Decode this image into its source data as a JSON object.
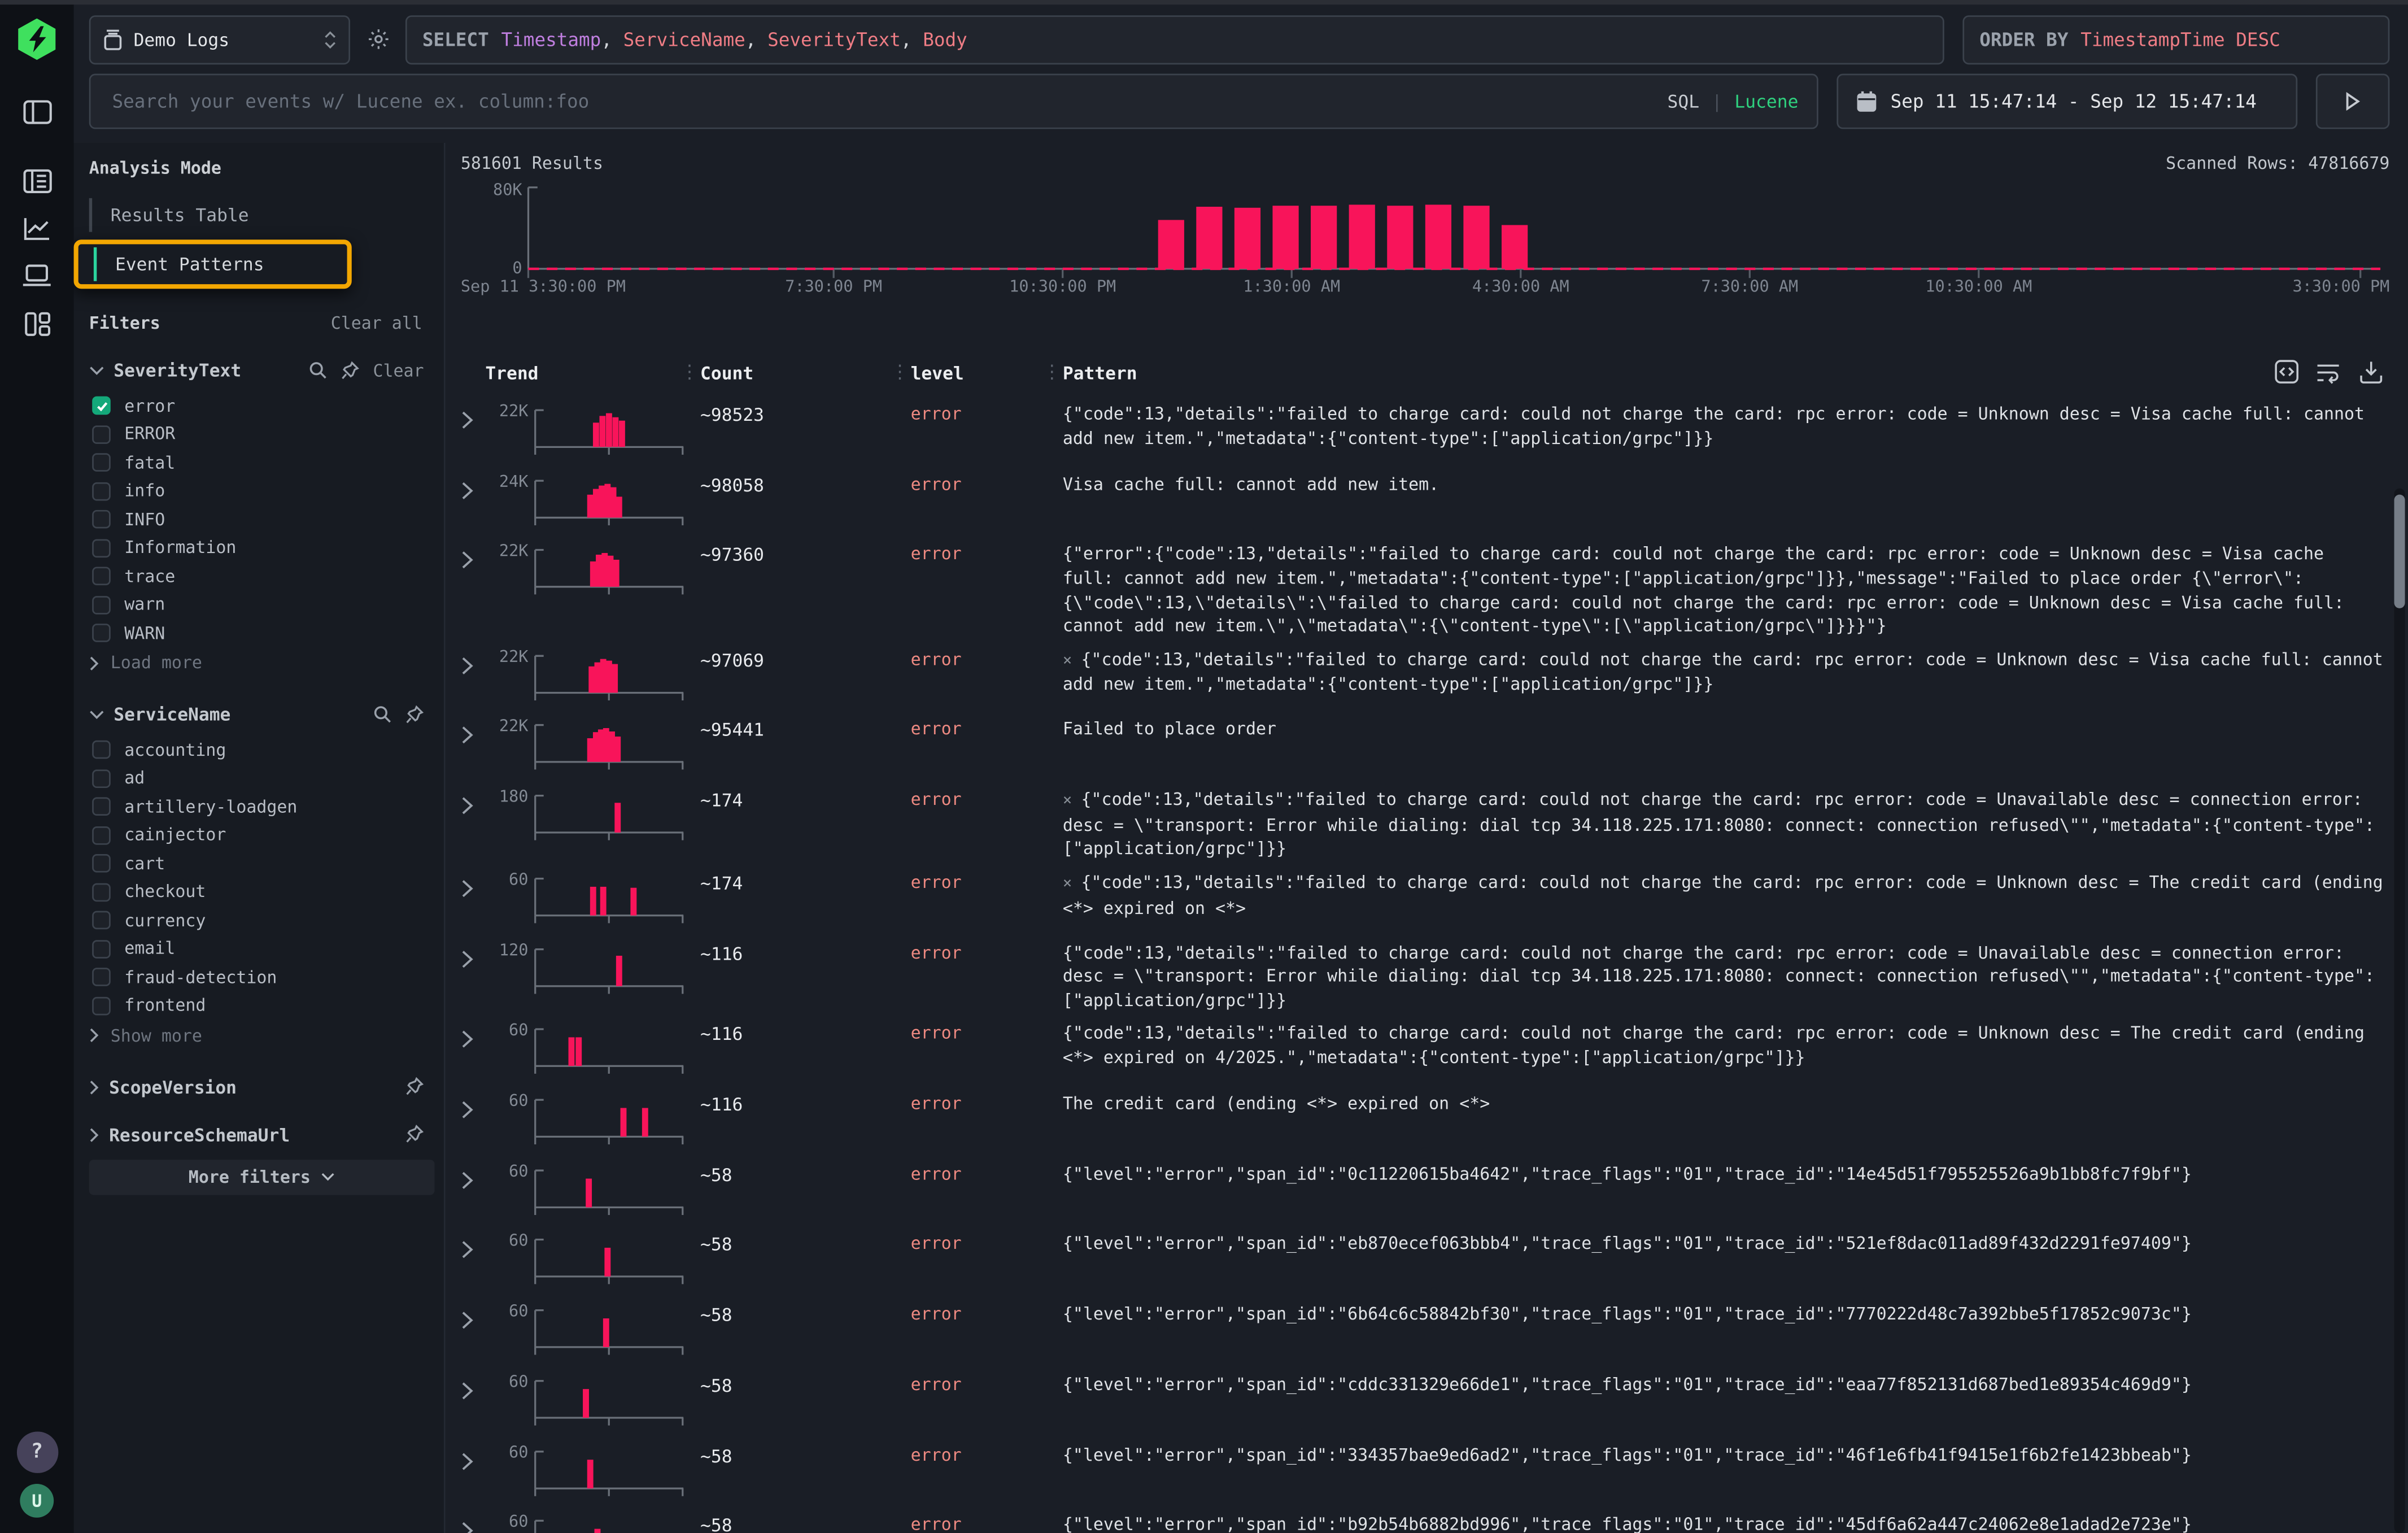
{
  "colors": {
    "accent_pink": "#f8145a",
    "salmon": "#ef7d85",
    "purple": "#c07fe0",
    "green": "#2fd27f",
    "check_green": "#14a87a",
    "annotation_yellow": "#f3a702"
  },
  "icon_rail": {
    "help_label": "?",
    "avatar_label": "U"
  },
  "topbar": {
    "source_select": {
      "label": "Demo Logs"
    },
    "select_query": {
      "keyword": "SELECT",
      "columns": [
        {
          "text": "Timestamp",
          "color": "#c07fe0"
        },
        {
          "text": "ServiceName",
          "color": "#ef7d85"
        },
        {
          "text": "SeverityText",
          "color": "#ef7d85"
        },
        {
          "text": "Body",
          "color": "#ef7d85"
        }
      ]
    },
    "order_by": {
      "keyword": "ORDER BY",
      "value": "TimestampTime DESC"
    },
    "search": {
      "placeholder": "Search your events w/ Lucene ex. column:foo",
      "sql_label": "SQL",
      "divider": "|",
      "lucene_label": "Lucene"
    },
    "time_range": "Sep 11 15:47:14 - Sep 12 15:47:14"
  },
  "filters_panel": {
    "analysis_mode": {
      "title": "Analysis Mode",
      "options": [
        {
          "label": "Results Table",
          "active": false,
          "annotated": false
        },
        {
          "label": "Event Patterns",
          "active": true,
          "annotated": true
        }
      ]
    },
    "filters_title": "Filters",
    "clear_all": "Clear all",
    "clear": "Clear",
    "groups": [
      {
        "name": "SeverityText",
        "expanded": true,
        "has_search": true,
        "has_pin": true,
        "has_clear": true,
        "options": [
          {
            "label": "error",
            "checked": true
          },
          {
            "label": "ERROR",
            "checked": false
          },
          {
            "label": "fatal",
            "checked": false
          },
          {
            "label": "info",
            "checked": false
          },
          {
            "label": "INFO",
            "checked": false
          },
          {
            "label": "Information",
            "checked": false
          },
          {
            "label": "trace",
            "checked": false
          },
          {
            "label": "warn",
            "checked": false
          },
          {
            "label": "WARN",
            "checked": false
          }
        ],
        "more_label": "Load more"
      },
      {
        "name": "ServiceName",
        "expanded": true,
        "has_search": true,
        "has_pin": true,
        "has_clear": false,
        "options": [
          {
            "label": "accounting",
            "checked": false
          },
          {
            "label": "ad",
            "checked": false
          },
          {
            "label": "artillery-loadgen",
            "checked": false
          },
          {
            "label": "cainjector",
            "checked": false
          },
          {
            "label": "cart",
            "checked": false
          },
          {
            "label": "checkout",
            "checked": false
          },
          {
            "label": "currency",
            "checked": false
          },
          {
            "label": "email",
            "checked": false
          },
          {
            "label": "fraud-detection",
            "checked": false
          },
          {
            "label": "frontend",
            "checked": false
          }
        ],
        "more_label": "Show more"
      },
      {
        "name": "ScopeVersion",
        "expanded": false,
        "has_search": false,
        "has_pin": true,
        "has_clear": false,
        "options": [],
        "more_label": ""
      },
      {
        "name": "ResourceSchemaUrl",
        "expanded": false,
        "has_search": false,
        "has_pin": true,
        "has_clear": false,
        "options": [],
        "more_label": ""
      }
    ],
    "more_filters_label": "More filters"
  },
  "results": {
    "count_label": "581601 Results",
    "scanned_label": "Scanned Rows: 47816679"
  },
  "chart_data": {
    "type": "bar",
    "title": "581601 Results",
    "ylim": [
      0,
      80000
    ],
    "y_tick_labels": [
      "0",
      "80K"
    ],
    "x_ticks": [
      {
        "label": "Sep 11 3:30:00 PM",
        "hour": 0
      },
      {
        "label": "7:30:00 PM",
        "hour": 4
      },
      {
        "label": "10:30:00 PM",
        "hour": 7
      },
      {
        "label": "1:30:00 AM",
        "hour": 10
      },
      {
        "label": "4:30:00 AM",
        "hour": 13
      },
      {
        "label": "7:30:00 AM",
        "hour": 16
      },
      {
        "label": "10:30:00 AM",
        "hour": 19
      },
      {
        "label": "3:30:00 PM",
        "hour": 24
      }
    ],
    "bar_start_hour": 8.25,
    "bar_slot_hours": 0.5,
    "values": [
      48000,
      61000,
      60000,
      62000,
      62000,
      63000,
      62000,
      63000,
      62000,
      43000
    ],
    "series_color": "#f8145a",
    "baseline_dashed": true,
    "grid": false,
    "legend": false
  },
  "table": {
    "columns": [
      "Trend",
      "Count",
      "level",
      "Pattern"
    ],
    "toolbar_icons": [
      "code-icon",
      "wrap-lines-icon",
      "download-icon"
    ],
    "rows": [
      {
        "trend_max": "22K",
        "bars": [
          [
            0.4,
            0.72
          ],
          [
            0.445,
            0.92
          ],
          [
            0.49,
            1.0
          ],
          [
            0.535,
            0.88
          ],
          [
            0.58,
            0.78
          ]
        ],
        "count": "~98523",
        "level": "error",
        "flag": "",
        "pattern": "{\"code\":13,\"details\":\"failed to charge card: could not charge the card: rpc error: code = Unknown desc = Visa cache full: cannot add new item.\",\"metadata\":{\"content-type\":[\"application/grpc\"]}}"
      },
      {
        "trend_max": "24K",
        "bars": [
          [
            0.36,
            0.68
          ],
          [
            0.4,
            0.85
          ],
          [
            0.44,
            0.95
          ],
          [
            0.48,
            1.0
          ],
          [
            0.52,
            0.9
          ],
          [
            0.56,
            0.62
          ]
        ],
        "count": "~98058",
        "level": "error",
        "flag": "",
        "pattern": "Visa cache full: cannot add new item."
      },
      {
        "trend_max": "22K",
        "bars": [
          [
            0.38,
            0.75
          ],
          [
            0.42,
            0.95
          ],
          [
            0.46,
            1.0
          ],
          [
            0.5,
            0.92
          ],
          [
            0.54,
            0.8
          ]
        ],
        "count": "~97360",
        "level": "error",
        "flag": "",
        "pattern": "{\"error\":{\"code\":13,\"details\":\"failed to charge card: could not charge the card: rpc error: code = Unknown desc = Visa cache full: cannot add new item.\",\"metadata\":{\"content-type\":[\"application/grpc\"]}},\"message\":\"Failed to place order {\\\"error\\\":{\\\"code\\\":13,\\\"details\\\":\\\"failed to charge card: could not charge the card: rpc error: code = Unknown desc = Visa cache full: cannot add new item.\\\",\\\"metadata\\\":{\\\"content-type\\\":[\\\"application/grpc\\\"]}}}\"}"
      },
      {
        "trend_max": "22K",
        "bars": [
          [
            0.37,
            0.78
          ],
          [
            0.41,
            0.9
          ],
          [
            0.45,
            1.0
          ],
          [
            0.49,
            0.95
          ],
          [
            0.53,
            0.85
          ]
        ],
        "count": "~97069",
        "level": "error",
        "flag": "×",
        "pattern": "{\"code\":13,\"details\":\"failed to charge card: could not charge the card: rpc error: code = Unknown desc = Visa cache full: cannot add new item.\",\"metadata\":{\"content-type\":[\"application/grpc\"]}}"
      },
      {
        "trend_max": "22K",
        "bars": [
          [
            0.36,
            0.7
          ],
          [
            0.4,
            0.88
          ],
          [
            0.435,
            0.96
          ],
          [
            0.47,
            1.0
          ],
          [
            0.51,
            0.9
          ],
          [
            0.55,
            0.75
          ]
        ],
        "count": "~95441",
        "level": "error",
        "flag": "",
        "pattern": "Failed to place order"
      },
      {
        "trend_max": "180",
        "bars": [
          [
            0.55,
            0.88
          ]
        ],
        "count": "~174",
        "level": "error",
        "flag": "×",
        "pattern": "{\"code\":13,\"details\":\"failed to charge card: could not charge the card: rpc error: code = Unavailable desc = connection error: desc = \\\"transport: Error while dialing: dial tcp 34.118.225.171:8080: connect: connection refused\\\"\",\"metadata\":{\"content-type\":[\"application/grpc\"]}}"
      },
      {
        "trend_max": "60",
        "bars": [
          [
            0.38,
            0.85
          ],
          [
            0.45,
            0.85
          ],
          [
            0.66,
            0.82
          ]
        ],
        "count": "~174",
        "level": "error",
        "flag": "×",
        "pattern": "{\"code\":13,\"details\":\"failed to charge card: could not charge the card: rpc error: code = Unknown desc = The credit card (ending <*> expired on <*>"
      },
      {
        "trend_max": "120",
        "bars": [
          [
            0.56,
            0.9
          ]
        ],
        "count": "~116",
        "level": "error",
        "flag": "",
        "pattern": "{\"code\":13,\"details\":\"failed to charge card: could not charge the card: rpc error: code = Unavailable desc = connection error: desc = \\\"transport: Error while dialing: dial tcp 34.118.225.171:8080: connect: connection refused\\\"\",\"metadata\":{\"content-type\":[\"application/grpc\"]}}"
      },
      {
        "trend_max": "60",
        "bars": [
          [
            0.23,
            0.85
          ],
          [
            0.28,
            0.85
          ]
        ],
        "count": "~116",
        "level": "error",
        "flag": "",
        "pattern": "{\"code\":13,\"details\":\"failed to charge card: could not charge the card: rpc error: code = Unknown desc = The credit card (ending <*> expired on 4/2025.\",\"metadata\":{\"content-type\":[\"application/grpc\"]}}"
      },
      {
        "trend_max": "60",
        "bars": [
          [
            0.59,
            0.85
          ],
          [
            0.74,
            0.85
          ]
        ],
        "count": "~116",
        "level": "error",
        "flag": "",
        "pattern": "The credit card (ending <*> expired on <*>"
      },
      {
        "trend_max": "60",
        "bars": [
          [
            0.35,
            0.85
          ]
        ],
        "count": "~58",
        "level": "error",
        "flag": "",
        "pattern": "{\"level\":\"error\",\"span_id\":\"0c11220615ba4642\",\"trace_flags\":\"01\",\"trace_id\":\"14e45d51f795525526a9b1bb8fc7f9bf\"}"
      },
      {
        "trend_max": "60",
        "bars": [
          [
            0.48,
            0.85
          ]
        ],
        "count": "~58",
        "level": "error",
        "flag": "",
        "pattern": "{\"level\":\"error\",\"span_id\":\"eb870ecef063bbb4\",\"trace_flags\":\"01\",\"trace_id\":\"521ef8dac011ad89f432d2291fe97409\"}"
      },
      {
        "trend_max": "60",
        "bars": [
          [
            0.47,
            0.85
          ]
        ],
        "count": "~58",
        "level": "error",
        "flag": "",
        "pattern": "{\"level\":\"error\",\"span_id\":\"6b64c6c58842bf30\",\"trace_flags\":\"01\",\"trace_id\":\"7770222d48c7a392bbe5f17852c9073c\"}"
      },
      {
        "trend_max": "60",
        "bars": [
          [
            0.33,
            0.85
          ]
        ],
        "count": "~58",
        "level": "error",
        "flag": "",
        "pattern": "{\"level\":\"error\",\"span_id\":\"cddc331329e66de1\",\"trace_flags\":\"01\",\"trace_id\":\"eaa77f852131d687bed1e89354c469d9\"}"
      },
      {
        "trend_max": "60",
        "bars": [
          [
            0.36,
            0.85
          ]
        ],
        "count": "~58",
        "level": "error",
        "flag": "",
        "pattern": "{\"level\":\"error\",\"span_id\":\"334357bae9ed6ad2\",\"trace_flags\":\"01\",\"trace_id\":\"46f1e6fb41f9415e1f6b2fe1423bbeab\"}"
      },
      {
        "trend_max": "60",
        "bars": [
          [
            0.41,
            0.85
          ]
        ],
        "count": "~58",
        "level": "error",
        "flag": "",
        "pattern": "{\"level\":\"error\",\"span_id\":\"b92b54b6882bd996\",\"trace_flags\":\"01\",\"trace_id\":\"45df6a62a447c24062e8e1adad2e723e\"}"
      }
    ]
  }
}
